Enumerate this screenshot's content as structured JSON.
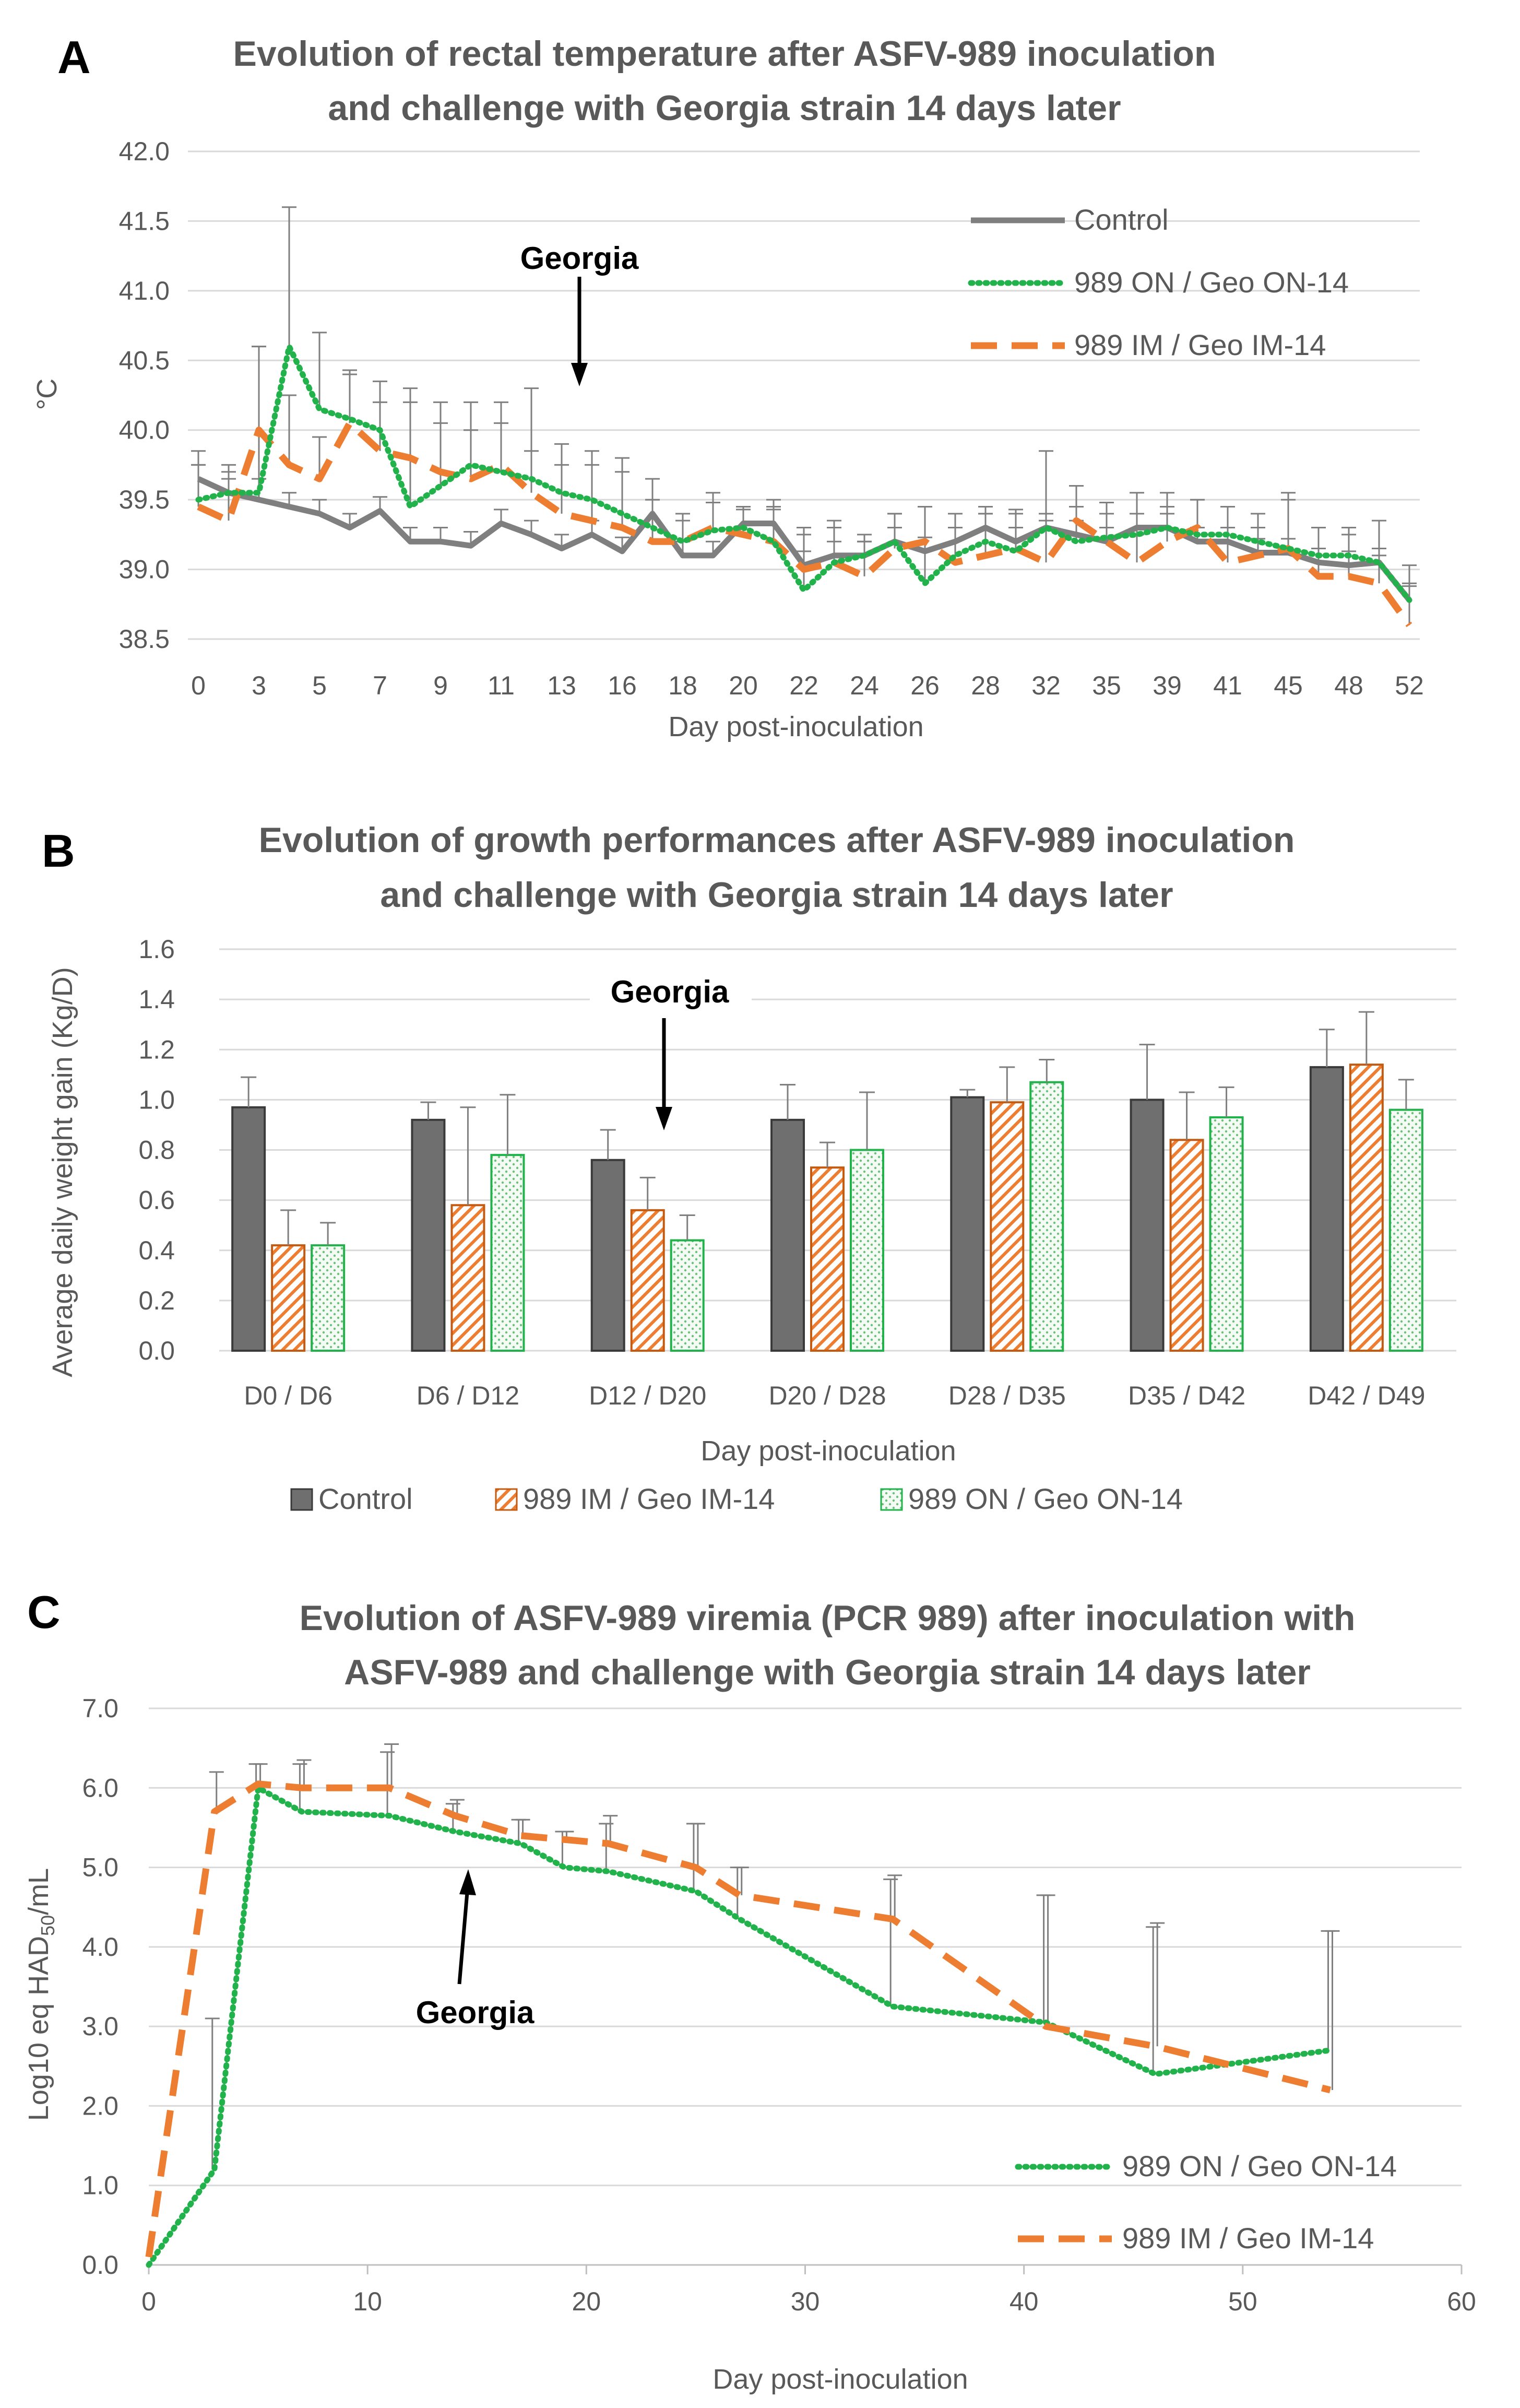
{
  "colors": {
    "control": "#7f7f7f",
    "on": "#21b24b",
    "im": "#ed7d31",
    "grid": "#d9d9d9",
    "text": "#595959",
    "error": "#7f7f7f",
    "bar_control": "#6f6f6f",
    "bar_im": "#ed7d31",
    "bar_on": "#e7f4e8"
  },
  "chart_data": [
    {
      "panel": "A",
      "type": "line",
      "title_line1": "Evolution of rectal temperature after ASFV-989 inoculation",
      "title_line2": "and challenge with Georgia strain 14 days later",
      "xlabel": "Day post-inoculation",
      "ylabel": "°C",
      "ylim": [
        38.5,
        42.0
      ],
      "yticks": [
        "42.0",
        "41.5",
        "41.0",
        "40.5",
        "40.0",
        "39.5",
        "39.0",
        "38.5"
      ],
      "xtick_labels": [
        "0",
        "3",
        "5",
        "7",
        "9",
        "11",
        "13",
        "16",
        "18",
        "20",
        "22",
        "24",
        "26",
        "28",
        "32",
        "35",
        "39",
        "41",
        "45",
        "48",
        "52"
      ],
      "annotation": "Georgia",
      "annotation_index": 13,
      "grid": true,
      "legend_position": "top-right",
      "series": [
        {
          "name": "Control",
          "style": "solid",
          "values": [
            39.65,
            39.55,
            39.5,
            39.45,
            39.4,
            39.3,
            39.42,
            39.2,
            39.2,
            39.17,
            39.33,
            39.25,
            39.15,
            39.25,
            39.13,
            39.4,
            39.1,
            39.1,
            39.33,
            39.33,
            39.03,
            39.1,
            39.1,
            39.2,
            39.13,
            39.2,
            39.3,
            39.2,
            39.3,
            39.25,
            39.2,
            39.3,
            39.3,
            39.2,
            39.2,
            39.12,
            39.12,
            39.05,
            39.03,
            39.05,
            38.78
          ],
          "errors": [
            0.2,
            0.15,
            0.15,
            0.1,
            0.1,
            0.1,
            0.1,
            0.1,
            0.1,
            0.1,
            0.1,
            0.1,
            0.1,
            0.1,
            0.1,
            0.1,
            0.1,
            0.1,
            0.1,
            0.1,
            0.1,
            0.1,
            0.1,
            0.1,
            0.1,
            0.1,
            0.1,
            0.1,
            0.1,
            0.1,
            0.1,
            0.1,
            0.1,
            0.1,
            0.1,
            0.1,
            0.1,
            0.1,
            0.1,
            0.1,
            0.1
          ]
        },
        {
          "name": "989 ON / Geo ON-14",
          "style": "dotted",
          "values": [
            39.5,
            39.55,
            39.55,
            40.6,
            40.15,
            40.08,
            40.0,
            39.45,
            39.6,
            39.75,
            39.7,
            39.65,
            39.55,
            39.5,
            39.4,
            39.3,
            39.2,
            39.28,
            39.3,
            39.2,
            38.85,
            39.05,
            39.1,
            39.2,
            38.9,
            39.1,
            39.2,
            39.13,
            39.3,
            39.2,
            39.23,
            39.25,
            39.3,
            39.25,
            39.25,
            39.2,
            39.15,
            39.1,
            39.1,
            39.05,
            38.78
          ],
          "errors": [
            0.25,
            0.2,
            1.05,
            1.0,
            0.55,
            0.35,
            0.35,
            0.75,
            0.6,
            0.45,
            0.5,
            0.65,
            0.35,
            0.35,
            0.4,
            0.35,
            0.15,
            0.2,
            0.15,
            0.3,
            0.45,
            0.25,
            0.15,
            0.2,
            0.55,
            0.3,
            0.25,
            0.3,
            0.55,
            0.25,
            0.25,
            0.3,
            0.25,
            0.25,
            0.2,
            0.2,
            0.4,
            0.2,
            0.15,
            0.3,
            0.25
          ]
        },
        {
          "name": "989 IM / Geo IM-14",
          "style": "dashed",
          "values": [
            39.45,
            39.35,
            40.0,
            39.75,
            39.65,
            40.05,
            39.85,
            39.8,
            39.7,
            39.65,
            39.75,
            39.55,
            39.4,
            39.35,
            39.3,
            39.2,
            39.2,
            39.3,
            39.25,
            39.2,
            39.0,
            39.05,
            38.95,
            39.15,
            39.2,
            39.05,
            39.1,
            39.15,
            39.05,
            39.35,
            39.2,
            39.05,
            39.2,
            39.3,
            39.05,
            39.1,
            39.15,
            38.95,
            38.95,
            38.9,
            38.6
          ],
          "errors": [
            0.3,
            0.3,
            0.6,
            0.5,
            0.3,
            0.35,
            0.35,
            0.5,
            0.35,
            0.35,
            0.3,
            0.3,
            0.35,
            0.4,
            0.4,
            0.3,
            0.2,
            0.25,
            0.2,
            0.25,
            0.25,
            0.3,
            0.25,
            0.25,
            0.25,
            0.25,
            0.3,
            0.25,
            0.3,
            0.25,
            0.2,
            0.2,
            0.25,
            0.2,
            0.25,
            0.2,
            0.35,
            0.2,
            0.35,
            0.2,
            0.3
          ]
        }
      ]
    },
    {
      "panel": "B",
      "type": "bar",
      "title_line1": "Evolution of growth performances after ASFV-989 inoculation",
      "title_line2": "and challenge with Georgia strain 14 days later",
      "xlabel": "Day post-inoculation",
      "ylabel": "Average daily weight gain (Kg/D)",
      "ylim": [
        0.0,
        1.6
      ],
      "yticks": [
        "1.6",
        "1.4",
        "1.2",
        "1.0",
        "0.8",
        "0.6",
        "0.4",
        "0.2",
        "0.0"
      ],
      "categories": [
        "D0 / D6",
        "D6 / D12",
        "D12 / D20",
        "D20 / D28",
        "D28 / D35",
        "D35 / D42",
        "D42 / D49"
      ],
      "annotation": "Georgia",
      "annotation_category": 2,
      "legend_position": "bottom",
      "series": [
        {
          "name": "Control",
          "values": [
            0.97,
            0.92,
            0.76,
            0.92,
            1.01,
            1.0,
            1.13
          ],
          "errors": [
            0.12,
            0.07,
            0.12,
            0.14,
            0.03,
            0.22,
            0.15
          ]
        },
        {
          "name": "989 IM / Geo IM-14",
          "values": [
            0.42,
            0.58,
            0.56,
            0.73,
            0.99,
            0.84,
            1.14
          ],
          "errors": [
            0.14,
            0.39,
            0.13,
            0.1,
            0.14,
            0.19,
            0.21
          ]
        },
        {
          "name": "989 ON / Geo ON-14",
          "values": [
            0.42,
            0.78,
            0.44,
            0.8,
            1.07,
            0.93,
            0.96
          ],
          "errors": [
            0.09,
            0.24,
            0.1,
            0.23,
            0.09,
            0.12,
            0.12
          ]
        }
      ]
    },
    {
      "panel": "C",
      "type": "line",
      "title_line1": "Evolution of ASFV-989 viremia (PCR 989) after inoculation with",
      "title_line2": "ASFV-989 and challenge with Georgia strain 14 days later",
      "xlabel": "Day post-inoculation",
      "ylabel": "Log10 eq HAD",
      "ylabel_sub": "50",
      "ylabel_suffix": "/mL",
      "xlim": [
        0,
        60
      ],
      "ylim": [
        0.0,
        7.0
      ],
      "xticks": [
        "0",
        "10",
        "20",
        "30",
        "40",
        "50",
        "60"
      ],
      "yticks": [
        "7.0",
        "6.0",
        "5.0",
        "4.0",
        "3.0",
        "2.0",
        "1.0",
        "0.0"
      ],
      "annotation": "Georgia",
      "annotation_day": 14,
      "grid": true,
      "legend_position": "bottom-right",
      "series": [
        {
          "name": "989 ON / Geo ON-14",
          "style": "dotted",
          "x": [
            0,
            3,
            5,
            7,
            11,
            14,
            17,
            19,
            21,
            25,
            27,
            34,
            41,
            46,
            54
          ],
          "y": [
            0.0,
            1.2,
            6.0,
            5.7,
            5.65,
            5.45,
            5.3,
            5.0,
            4.95,
            4.7,
            4.35,
            3.25,
            3.05,
            2.4,
            2.7
          ],
          "errors": [
            0,
            1.9,
            0.3,
            0.6,
            0.8,
            0.35,
            0.3,
            0.45,
            0.6,
            0.85,
            0.65,
            1.6,
            1.6,
            1.85,
            1.5
          ]
        },
        {
          "name": "989 IM / Geo IM-14",
          "style": "dashed",
          "x": [
            0,
            3,
            5,
            7,
            11,
            14,
            17,
            19,
            21,
            25,
            27,
            34,
            41,
            46,
            54
          ],
          "y": [
            0.1,
            5.7,
            6.05,
            6.0,
            6.0,
            5.65,
            5.4,
            5.35,
            5.3,
            5.0,
            4.65,
            4.35,
            3.0,
            2.75,
            2.2
          ],
          "errors": [
            0,
            0.5,
            0.25,
            0.35,
            0.55,
            0.2,
            0.2,
            0.1,
            0.35,
            0.55,
            0.35,
            0.55,
            1.65,
            1.55,
            2.0
          ]
        }
      ]
    }
  ]
}
